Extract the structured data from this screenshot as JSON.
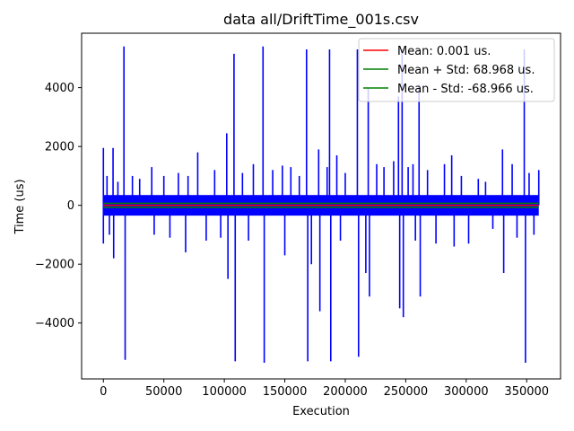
{
  "chart_data": {
    "type": "line",
    "title": "data all/DriftTime_001s.csv",
    "xlabel": "Execution",
    "ylabel": "Time (us)",
    "xlim": [
      -18000,
      378000
    ],
    "ylim": [
      -5900,
      5850
    ],
    "xticks": [
      0,
      50000,
      100000,
      150000,
      200000,
      250000,
      300000,
      350000
    ],
    "xtick_labels": [
      "0",
      "50000",
      "100000",
      "150000",
      "200000",
      "250000",
      "300000",
      "350000"
    ],
    "yticks": [
      -4000,
      -2000,
      0,
      2000,
      4000
    ],
    "ytick_labels": [
      "−4000",
      "−2000",
      "0",
      "2000",
      "4000"
    ],
    "grid": false,
    "legend_position": "top-right",
    "series": [
      {
        "name": "",
        "color": "#0000ff",
        "x_range": [
          0,
          360000
        ],
        "baseline_band": [
          -350,
          350
        ],
        "spikes": [
          {
            "x": 0,
            "y": 1950
          },
          {
            "x": 0,
            "y": -1300
          },
          {
            "x": 3000,
            "y": 1000
          },
          {
            "x": 5000,
            "y": -1000
          },
          {
            "x": 8000,
            "y": 1950
          },
          {
            "x": 8500,
            "y": -1800
          },
          {
            "x": 12000,
            "y": 800
          },
          {
            "x": 17000,
            "y": 5400
          },
          {
            "x": 18000,
            "y": -5250
          },
          {
            "x": 24000,
            "y": 1000
          },
          {
            "x": 30000,
            "y": 900
          },
          {
            "x": 40000,
            "y": 1300
          },
          {
            "x": 42000,
            "y": -1000
          },
          {
            "x": 50000,
            "y": 1000
          },
          {
            "x": 55000,
            "y": -1100
          },
          {
            "x": 62000,
            "y": 1100
          },
          {
            "x": 68000,
            "y": -1600
          },
          {
            "x": 70000,
            "y": 1000
          },
          {
            "x": 78000,
            "y": 1800
          },
          {
            "x": 85000,
            "y": -1200
          },
          {
            "x": 92000,
            "y": 1200
          },
          {
            "x": 97000,
            "y": -1100
          },
          {
            "x": 102000,
            "y": 2450
          },
          {
            "x": 103000,
            "y": -2500
          },
          {
            "x": 108000,
            "y": 5150
          },
          {
            "x": 109000,
            "y": -5300
          },
          {
            "x": 115000,
            "y": 1100
          },
          {
            "x": 120000,
            "y": -1200
          },
          {
            "x": 124000,
            "y": 1400
          },
          {
            "x": 132000,
            "y": 5400
          },
          {
            "x": 133000,
            "y": -5350
          },
          {
            "x": 140000,
            "y": 1200
          },
          {
            "x": 148000,
            "y": 1350
          },
          {
            "x": 150000,
            "y": -1700
          },
          {
            "x": 155000,
            "y": 1300
          },
          {
            "x": 162000,
            "y": 1000
          },
          {
            "x": 168000,
            "y": 5300
          },
          {
            "x": 169000,
            "y": -5300
          },
          {
            "x": 172000,
            "y": -2000
          },
          {
            "x": 178000,
            "y": 1900
          },
          {
            "x": 179000,
            "y": -3600
          },
          {
            "x": 185000,
            "y": 1300
          },
          {
            "x": 187000,
            "y": 5300
          },
          {
            "x": 188000,
            "y": -5300
          },
          {
            "x": 193000,
            "y": 1700
          },
          {
            "x": 196000,
            "y": -1200
          },
          {
            "x": 200000,
            "y": 1100
          },
          {
            "x": 210000,
            "y": 5300
          },
          {
            "x": 211000,
            "y": -5150
          },
          {
            "x": 217000,
            "y": -2300
          },
          {
            "x": 219000,
            "y": 4000
          },
          {
            "x": 220000,
            "y": -3100
          },
          {
            "x": 226000,
            "y": 1400
          },
          {
            "x": 232000,
            "y": 1300
          },
          {
            "x": 240000,
            "y": 1500
          },
          {
            "x": 244000,
            "y": 3700
          },
          {
            "x": 245000,
            "y": -3500
          },
          {
            "x": 247000,
            "y": 5300
          },
          {
            "x": 248000,
            "y": -3800
          },
          {
            "x": 252000,
            "y": 1300
          },
          {
            "x": 256000,
            "y": 1400
          },
          {
            "x": 258000,
            "y": -1200
          },
          {
            "x": 261000,
            "y": 4100
          },
          {
            "x": 262000,
            "y": -3100
          },
          {
            "x": 268000,
            "y": 1200
          },
          {
            "x": 275000,
            "y": -1300
          },
          {
            "x": 282000,
            "y": 1400
          },
          {
            "x": 288000,
            "y": 1700
          },
          {
            "x": 290000,
            "y": -1400
          },
          {
            "x": 296000,
            "y": 1000
          },
          {
            "x": 302000,
            "y": -1300
          },
          {
            "x": 310000,
            "y": 900
          },
          {
            "x": 316000,
            "y": 800
          },
          {
            "x": 322000,
            "y": -800
          },
          {
            "x": 330000,
            "y": 1900
          },
          {
            "x": 331000,
            "y": -2300
          },
          {
            "x": 338000,
            "y": 1400
          },
          {
            "x": 342000,
            "y": -1100
          },
          {
            "x": 348000,
            "y": 5300
          },
          {
            "x": 349000,
            "y": -5350
          },
          {
            "x": 352000,
            "y": 1100
          },
          {
            "x": 356000,
            "y": -1000
          },
          {
            "x": 360000,
            "y": 1200
          }
        ]
      },
      {
        "name": "Mean: 0.001 us.",
        "color": "#ff0000",
        "y": 0.001
      },
      {
        "name": "Mean + Std:  68.968 us.",
        "color": "#008000",
        "y": 68.968
      },
      {
        "name": "Mean - Std:  -68.966 us.",
        "color": "#008000",
        "y": -68.966
      }
    ]
  }
}
